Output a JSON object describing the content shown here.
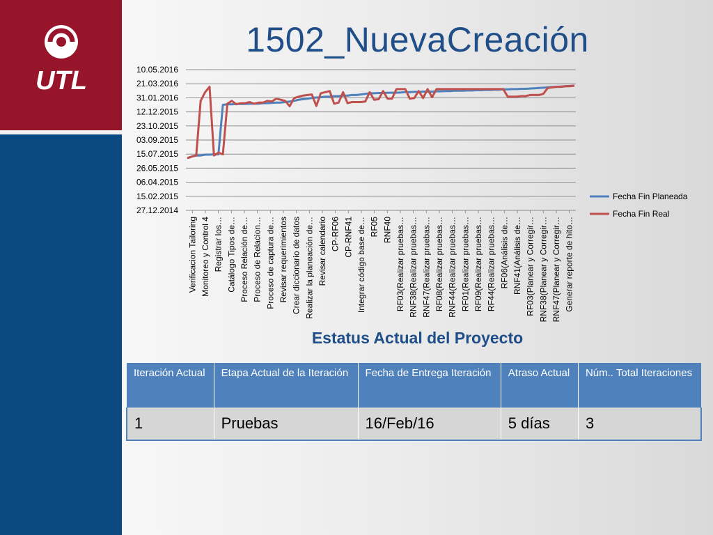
{
  "brand": {
    "logo_text": "UTL"
  },
  "title": "1502_NuevaCreación",
  "chart_data": {
    "type": "line",
    "y_is_date": true,
    "y_ticks": [
      "27.12.2014",
      "15.02.2015",
      "06.04.2015",
      "26.05.2015",
      "15.07.2015",
      "03.09.2015",
      "23.10.2015",
      "12.12.2015",
      "31.01.2016",
      "21.03.2016",
      "10.05.2016"
    ],
    "ylim": [
      "2014-12-27",
      "2016-05-10"
    ],
    "legend_position": "right",
    "grid": true,
    "x_tick_labels": [
      "Verificacion Tailoring",
      "Monitoreo y Control 4",
      "Registrar los…",
      "Catálogo Tipos de…",
      "Proceso Relación de…",
      "Proceso de Relacion…",
      "Proceso de captura de…",
      "Revisar requerimientos",
      "Crear diccionario de datos",
      "Realizar la planeación de…",
      "Revisar calendario",
      "CP-RF06",
      "CP-RNF41",
      "Integrar código base de…",
      "RF05",
      "RNF40",
      "RF03(Realizar pruebas…",
      "RNF38(Realizar pruebas…",
      "RNF47(Realizar pruebas…",
      "RF08(Realizar pruebas…",
      "RNF44(Realizar pruebas…",
      "RF01(Realizar pruebas…",
      "RF09(Realizar pruebas…",
      "RF44(Realizar pruebas…",
      "RF06(Análisis de…",
      "RNF41(Análisis de…",
      "RF03(Planear y Corregir…",
      "RNF38(Planear y Corregir…",
      "RNF47(Planear y Corregir…",
      "Generar reporte de hito…"
    ],
    "series": [
      {
        "name": "Fecha Fin Planeada",
        "color": "#4f81bd",
        "values": [
          "2015-07-01",
          "2015-07-06",
          "2015-07-10",
          "2015-07-10",
          "2015-07-13",
          "2015-07-13",
          "2015-07-14",
          "2015-07-14",
          "2016-01-06",
          "2016-01-08",
          "2016-01-08",
          "2016-01-09",
          "2016-01-09",
          "2016-01-09",
          "2016-01-10",
          "2016-01-10",
          "2016-01-10",
          "2016-01-12",
          "2016-01-12",
          "2016-01-13",
          "2016-01-14",
          "2016-01-14",
          "2016-01-16",
          "2016-01-18",
          "2016-01-20",
          "2016-01-24",
          "2016-01-26",
          "2016-01-28",
          "2016-01-30",
          "2016-02-01",
          "2016-02-02",
          "2016-02-04",
          "2016-02-04",
          "2016-02-06",
          "2016-02-06",
          "2016-02-08",
          "2016-02-08",
          "2016-02-10",
          "2016-02-10",
          "2016-02-12",
          "2016-02-14",
          "2016-02-16",
          "2016-02-16",
          "2016-02-17",
          "2016-02-17",
          "2016-02-18",
          "2016-02-18",
          "2016-02-18",
          "2016-02-19",
          "2016-02-20",
          "2016-02-20",
          "2016-02-21",
          "2016-02-21",
          "2016-02-22",
          "2016-02-22",
          "2016-02-22",
          "2016-02-23",
          "2016-02-23",
          "2016-02-24",
          "2016-02-24",
          "2016-02-25",
          "2016-02-25",
          "2016-02-25",
          "2016-02-26",
          "2016-02-26",
          "2016-02-27",
          "2016-02-27",
          "2016-02-28",
          "2016-02-28",
          "2016-02-29",
          "2016-02-29",
          "2016-03-01",
          "2016-03-01",
          "2016-03-02",
          "2016-03-02",
          "2016-03-03",
          "2016-03-03",
          "2016-03-04",
          "2016-03-05",
          "2016-03-06",
          "2016-03-07",
          "2016-03-08",
          "2016-03-09",
          "2016-03-10",
          "2016-03-11",
          "2016-03-12",
          "2016-03-13",
          "2016-03-14"
        ]
      },
      {
        "name": "Fecha Fin Real",
        "color": "#c0504d",
        "values": [
          "2015-07-01",
          "2015-07-06",
          "2015-07-10",
          "2016-01-20",
          "2016-02-20",
          "2016-03-10",
          "2015-07-10",
          "2015-07-20",
          "2015-07-14",
          "2016-01-10",
          "2016-01-20",
          "2016-01-08",
          "2016-01-12",
          "2016-01-12",
          "2016-01-16",
          "2016-01-10",
          "2016-01-14",
          "2016-01-14",
          "2016-01-20",
          "2016-01-18",
          "2016-01-28",
          "2016-01-24",
          "2016-01-20",
          "2016-01-01",
          "2016-01-30",
          "2016-02-04",
          "2016-02-08",
          "2016-02-10",
          "2016-02-12",
          "2016-01-02",
          "2016-02-16",
          "2016-02-20",
          "2016-02-24",
          "2016-01-10",
          "2016-01-14",
          "2016-02-20",
          "2016-01-12",
          "2016-01-16",
          "2016-01-16",
          "2016-01-16",
          "2016-01-18",
          "2016-02-20",
          "2016-01-24",
          "2016-01-26",
          "2016-02-24",
          "2016-01-28",
          "2016-01-28",
          "2016-03-02",
          "2016-03-02",
          "2016-03-02",
          "2016-01-28",
          "2016-01-30",
          "2016-02-24",
          "2016-01-30",
          "2016-03-02",
          "2016-02-02",
          "2016-03-02",
          "2016-03-02",
          "2016-03-02",
          "2016-03-02",
          "2016-03-02",
          "2016-03-02",
          "2016-03-02",
          "2016-03-02",
          "2016-03-02",
          "2016-03-02",
          "2016-03-02",
          "2016-03-02",
          "2016-03-02",
          "2016-03-02",
          "2016-03-02",
          "2016-03-02",
          "2016-02-04",
          "2016-02-04",
          "2016-02-04",
          "2016-02-06",
          "2016-02-06",
          "2016-02-10",
          "2016-02-10",
          "2016-02-10",
          "2016-02-14",
          "2016-03-06",
          "2016-03-08",
          "2016-03-10",
          "2016-03-10",
          "2016-03-12",
          "2016-03-12",
          "2016-03-14"
        ]
      }
    ]
  },
  "subtitle": "Estatus Actual del Proyecto",
  "table": {
    "headers": [
      "Iteración Actual",
      "Etapa Actual de la Iteración",
      "Fecha de Entrega Iteración",
      "Atraso Actual",
      "Núm.. Total Iteraciones"
    ],
    "row": [
      "1",
      "Pruebas",
      "16/Feb/16",
      "5 días",
      "3"
    ]
  }
}
